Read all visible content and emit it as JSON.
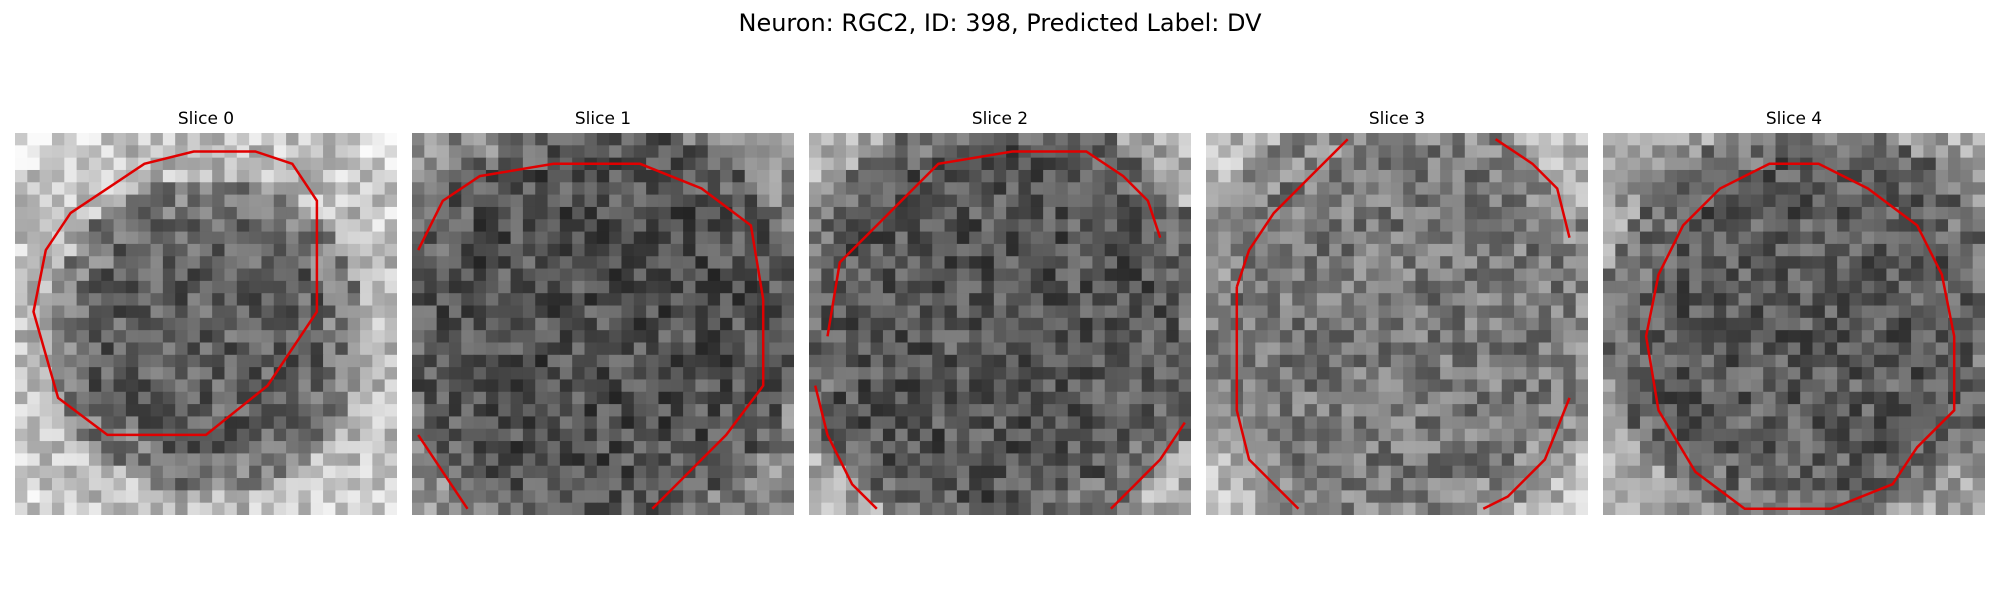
{
  "figure": {
    "title": "Neuron: RGC2, ID: 398, Predicted Label: DV"
  },
  "slices": [
    {
      "title": "Slice 0"
    },
    {
      "title": "Slice 1"
    },
    {
      "title": "Slice 2"
    },
    {
      "title": "Slice 3"
    },
    {
      "title": "Slice 4"
    }
  ],
  "colors": {
    "contour": "#e00000"
  }
}
